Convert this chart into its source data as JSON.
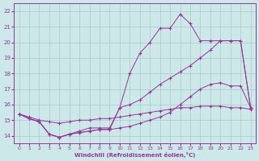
{
  "xlabel": "Windchill (Refroidissement éolien,°C)",
  "bg_color": "#cce8e8",
  "grid_color": "#aacccc",
  "line_color": "#993399",
  "xlim": [
    -0.5,
    23.5
  ],
  "ylim": [
    13.5,
    22.5
  ],
  "yticks": [
    14,
    15,
    16,
    17,
    18,
    19,
    20,
    21,
    22
  ],
  "xticks": [
    0,
    1,
    2,
    3,
    4,
    5,
    6,
    7,
    8,
    9,
    10,
    11,
    12,
    13,
    14,
    15,
    16,
    17,
    18,
    19,
    20,
    21,
    22,
    23
  ],
  "series": [
    {
      "x": [
        0,
        1,
        2,
        3,
        4,
        5,
        6,
        7,
        8,
        9,
        10,
        11,
        12,
        13,
        14,
        15,
        16,
        17,
        18,
        19,
        20,
        21,
        22,
        23
      ],
      "y": [
        15.4,
        15.2,
        15.0,
        14.9,
        14.8,
        14.9,
        15.0,
        15.0,
        15.1,
        15.1,
        15.2,
        15.3,
        15.4,
        15.5,
        15.6,
        15.7,
        15.8,
        15.8,
        15.9,
        15.9,
        15.9,
        15.8,
        15.8,
        15.7
      ]
    },
    {
      "x": [
        0,
        1,
        2,
        3,
        4,
        5,
        6,
        7,
        8,
        9,
        10,
        11,
        12,
        13,
        14,
        15,
        16,
        17,
        18,
        19,
        20,
        21,
        22,
        23
      ],
      "y": [
        15.4,
        15.1,
        14.9,
        14.1,
        13.9,
        14.1,
        14.2,
        14.3,
        14.4,
        14.4,
        14.5,
        14.6,
        14.8,
        15.0,
        15.2,
        15.5,
        16.0,
        16.5,
        17.0,
        17.3,
        17.4,
        17.2,
        17.2,
        15.8
      ]
    },
    {
      "x": [
        0,
        1,
        2,
        3,
        4,
        5,
        6,
        7,
        8,
        9,
        10,
        11,
        12,
        13,
        14,
        15,
        16,
        17,
        18,
        19,
        20,
        21,
        22,
        23
      ],
      "y": [
        15.4,
        15.1,
        14.9,
        14.1,
        13.9,
        14.1,
        14.2,
        14.3,
        14.4,
        14.4,
        15.8,
        18.0,
        19.3,
        20.0,
        20.9,
        20.9,
        21.8,
        21.2,
        20.1,
        20.1,
        20.1,
        20.1,
        20.1,
        15.8
      ]
    },
    {
      "x": [
        0,
        1,
        2,
        3,
        4,
        5,
        6,
        7,
        8,
        9,
        10,
        11,
        12,
        13,
        14,
        15,
        16,
        17,
        18,
        19,
        20,
        21,
        22,
        23
      ],
      "y": [
        15.4,
        15.1,
        14.9,
        14.1,
        13.9,
        14.1,
        14.3,
        14.5,
        14.5,
        14.5,
        15.8,
        16.0,
        16.3,
        16.8,
        17.3,
        17.7,
        18.1,
        18.5,
        19.0,
        19.5,
        20.1,
        20.1,
        20.1,
        15.8
      ]
    }
  ]
}
